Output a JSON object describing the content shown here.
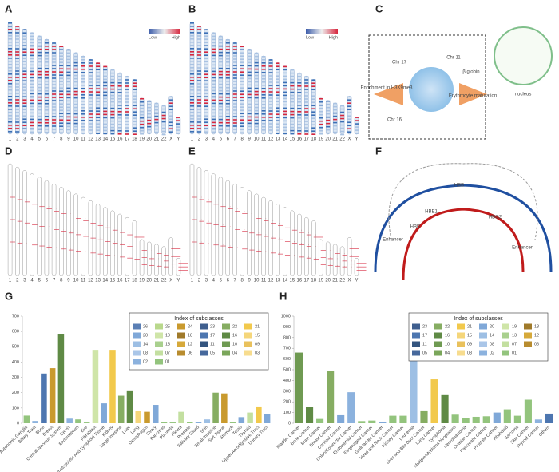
{
  "panels": [
    "A",
    "B",
    "C",
    "D",
    "E",
    "F",
    "G",
    "H"
  ],
  "chromosomes": [
    "1",
    "2",
    "3",
    "4",
    "5",
    "6",
    "7",
    "8",
    "9",
    "10",
    "11",
    "12",
    "13",
    "14",
    "15",
    "16",
    "17",
    "18",
    "19",
    "20",
    "21",
    "22",
    "X",
    "Y"
  ],
  "heatmap_legend": [
    "Low",
    "High"
  ],
  "diagram_c": {
    "labels": [
      "Chr 17",
      "Chr 11",
      "β globin",
      "Enrichment in H3K9me3",
      "Erythrocyte maturation",
      "Chr 16",
      "nucleus"
    ]
  },
  "diagram_f": {
    "labels": [
      "Enhancer",
      "Enhancer",
      "HBB",
      "HBD",
      "HBG2",
      "HBE1"
    ]
  },
  "chart_data": [
    {
      "type": "bar",
      "legend_title": "Index of subclasses",
      "legend": [
        "26",
        "25",
        "24",
        "23",
        "22",
        "21",
        "20",
        "19",
        "18",
        "17",
        "16",
        "15",
        "14",
        "13",
        "12",
        "11",
        "10",
        "09",
        "08",
        "07",
        "06",
        "05",
        "04",
        "03",
        "02",
        "01"
      ],
      "legend_colors": [
        "#5b7fb5",
        "#b9d88c",
        "#c99a2e",
        "#3f5f8f",
        "#86ad62",
        "#f2c94c",
        "#7fa8d8",
        "#cfe5a8",
        "#a07a2a",
        "#4d76b0",
        "#5f8a45",
        "#f5d67a",
        "#9dbfe4",
        "#a9d08e",
        "#d6a93a",
        "#34557f",
        "#6f9a52",
        "#e9c15c",
        "#aac6e8",
        "#c3dfa0",
        "#b88c2e",
        "#46689c",
        "#7aa65a",
        "#f7dc8e",
        "#8cb2de",
        "#93c47d"
      ],
      "categories": [
        "Autonomic Ganglia",
        "Biliary Tract",
        "Bone",
        "Breast",
        "Central Nervous System",
        "Cervix",
        "Endometrium",
        "Eye",
        "Fibroblast",
        "Haematopoietic And Lymphoid Tissue",
        "Kidney",
        "Large Intestine",
        "Liver",
        "Lung",
        "Oesophagus",
        "Ovary",
        "Pancreas",
        "Placenta",
        "Pleura",
        "Prostate",
        "Salivary Gland",
        "Skin",
        "Small Intestine",
        "Soft Tissue",
        "Stomach",
        "Testis",
        "Thyroid",
        "Upper Aerodigestive Tract",
        "Urinary Tract"
      ],
      "values": [
        50,
        15,
        325,
        360,
        585,
        30,
        25,
        5,
        480,
        130,
        480,
        180,
        215,
        80,
        75,
        120,
        10,
        5,
        75,
        10,
        5,
        25,
        200,
        195,
        10,
        40,
        70,
        110,
        60
      ],
      "colors": [
        "#93c47d",
        "#8cb2de",
        "#4d76b0",
        "#c99a2e",
        "#5f8a45",
        "#8cb2de",
        "#93c47d",
        "#93c47d",
        "#cfe5a8",
        "#7fa8d8",
        "#f2c94c",
        "#86ad62",
        "#5f8a45",
        "#f5d67a",
        "#c99a2e",
        "#7fa8d8",
        "#93c47d",
        "#93c47d",
        "#c3dfa0",
        "#93c47d",
        "#7fa8d8",
        "#9dbfe4",
        "#86ad62",
        "#c99a2e",
        "#93c47d",
        "#7fa8d8",
        "#c3dfa0",
        "#f2c94c",
        "#7fa8d8"
      ],
      "ylim": [
        0,
        700
      ],
      "yticks": [
        0,
        100,
        200,
        300,
        400,
        500,
        600,
        700
      ]
    },
    {
      "type": "bar",
      "legend_title": "Index of subclasses",
      "legend": [
        "23",
        "22",
        "21",
        "20",
        "19",
        "18",
        "17",
        "16",
        "15",
        "14",
        "13",
        "12",
        "11",
        "10",
        "09",
        "08",
        "07",
        "06",
        "05",
        "04",
        "03",
        "02",
        "01"
      ],
      "legend_colors": [
        "#3f5f8f",
        "#86ad62",
        "#f2c94c",
        "#7fa8d8",
        "#cfe5a8",
        "#a07a2a",
        "#4d76b0",
        "#5f8a45",
        "#f5d67a",
        "#9dbfe4",
        "#a9d08e",
        "#d6a93a",
        "#34557f",
        "#6f9a52",
        "#e9c15c",
        "#aac6e8",
        "#c3dfa0",
        "#b88c2e",
        "#46689c",
        "#7aa65a",
        "#f7dc8e",
        "#8cb2de",
        "#93c47d"
      ],
      "categories": [
        "Bladder Cancer",
        "Bone Cancer",
        "Brain Cancer",
        "Breast Cancer",
        "Cervical Cancer",
        "Colon/Colorectal Cancer",
        "Endometrial Cancer",
        "Esophageal Cancer",
        "Gallbladder Cancer",
        "Head and Neck Cancer",
        "Kidney Cancer",
        "Leukemia",
        "Liver and Bile Duct Cancer",
        "Lung Cancer",
        "Lymphoma",
        "Multiple/Myeloma Neoplasms",
        "Neuroblastoma",
        "Ovarian Cancer",
        "Pancreatic Cancer",
        "Prostate Cancer",
        "Rhabdoid",
        "Sarcoma",
        "Skin Cancer",
        "Thyroid Cancer",
        "Others"
      ],
      "values": [
        660,
        150,
        40,
        490,
        75,
        290,
        20,
        25,
        15,
        70,
        70,
        860,
        120,
        410,
        270,
        80,
        50,
        60,
        65,
        100,
        130,
        70,
        220,
        35,
        90
      ],
      "colors": [
        "#6f9a52",
        "#5f8a45",
        "#93c47d",
        "#86ad62",
        "#7fa8d8",
        "#8cb2de",
        "#93c47d",
        "#93c47d",
        "#7fa8d8",
        "#93c47d",
        "#93c47d",
        "#9dbfe4",
        "#86ad62",
        "#f2c94c",
        "#5f8a45",
        "#93c47d",
        "#93c47d",
        "#93c47d",
        "#93c47d",
        "#7fa8d8",
        "#93c47d",
        "#93c47d",
        "#93c47d",
        "#8cb2de",
        "#4d76b0"
      ],
      "ylim": [
        0,
        1000
      ],
      "yticks": [
        0,
        100,
        200,
        300,
        400,
        500,
        600,
        700,
        800,
        900,
        1000
      ]
    }
  ]
}
